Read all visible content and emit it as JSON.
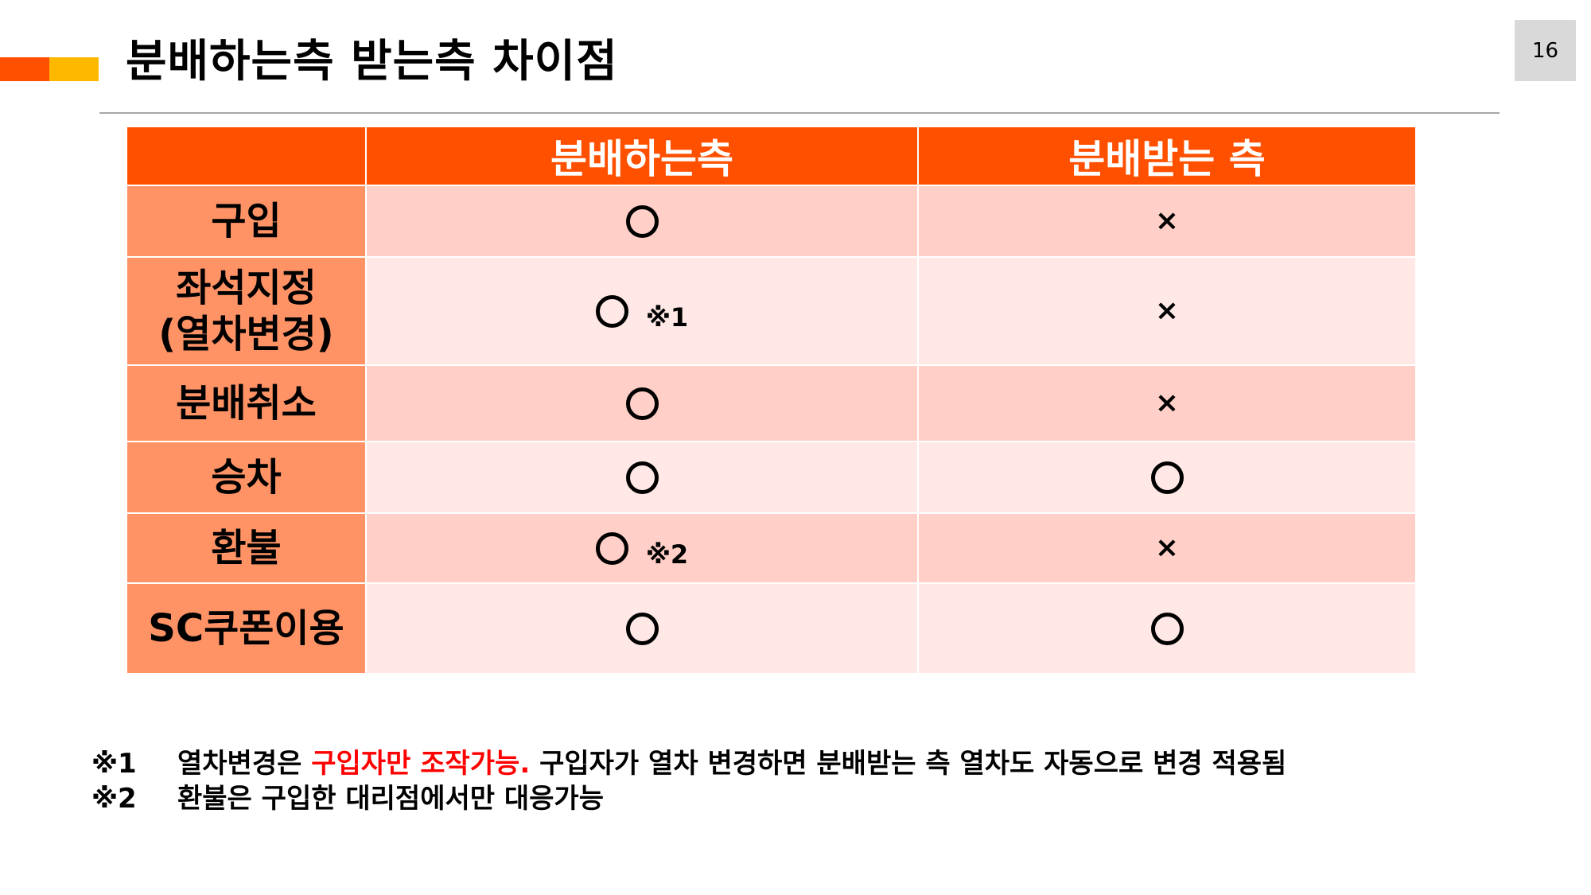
{
  "title": "분배하는측 받는측 차이점",
  "page_number": "16",
  "table": {
    "headers": [
      "",
      "분배하는측",
      "분배받는 측"
    ],
    "rows": [
      {
        "label": "구입",
        "left": {
          "symbol": "circle-icon",
          "note": ""
        },
        "right": {
          "symbol": "cross-icon"
        }
      },
      {
        "label_lines": [
          "좌석지정",
          "(열차변경)"
        ],
        "left": {
          "symbol": "circle-icon",
          "note": "※1"
        },
        "right": {
          "symbol": "cross-icon"
        }
      },
      {
        "label": "분배취소",
        "left": {
          "symbol": "circle-icon",
          "note": ""
        },
        "right": {
          "symbol": "cross-icon"
        }
      },
      {
        "label": "승차",
        "left": {
          "symbol": "circle-icon",
          "note": ""
        },
        "right": {
          "symbol": "circle-icon"
        }
      },
      {
        "label": "환불",
        "left": {
          "symbol": "circle-icon",
          "note": "※2"
        },
        "right": {
          "symbol": "cross-icon"
        }
      },
      {
        "label": "SC쿠폰이용",
        "left": {
          "symbol": "circle-icon",
          "note": ""
        },
        "right": {
          "symbol": "circle-icon"
        }
      }
    ]
  },
  "symbols": {
    "cross": "×"
  },
  "notes": [
    {
      "mark": "※1",
      "text_before": "열차변경은 ",
      "text_highlight": "구입자만 조작가능.",
      "text_after": " 구입자가 열차 변경하면 분배받는 측 열차도 자동으로 변경 적용됨"
    },
    {
      "mark": "※2",
      "text": "환불은 구입한 대리점에서만 대응가능"
    }
  ],
  "colors": {
    "accent": "#FF5000",
    "accent_secondary": "#FFB800",
    "row_header": "#FF9366",
    "row_odd": "#FFCFC8",
    "row_even": "#FFE8E6",
    "highlight_text": "#FF0000"
  }
}
